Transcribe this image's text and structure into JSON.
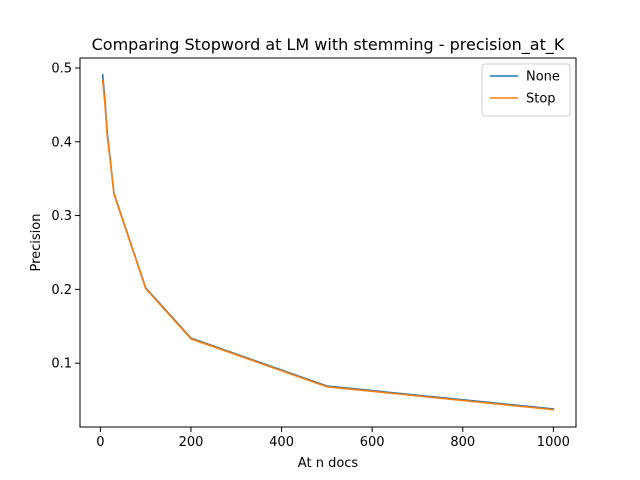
{
  "chart_data": {
    "type": "line",
    "title": "Comparing Stopword at LM with stemming - precision_at_K",
    "xlabel": "At n docs",
    "ylabel": "Precision",
    "xlim": [
      -45,
      1050
    ],
    "ylim": [
      0.0135,
      0.5135
    ],
    "xticks": [
      0,
      200,
      400,
      600,
      800,
      1000
    ],
    "yticks": [
      0.1,
      0.2,
      0.3,
      0.4,
      0.5
    ],
    "xtick_labels": [
      "0",
      "200",
      "400",
      "600",
      "800",
      "1000"
    ],
    "ytick_labels": [
      "0.1",
      "0.2",
      "0.3",
      "0.4",
      "0.5"
    ],
    "grid": false,
    "legend_position": "top-right",
    "x": [
      5,
      10,
      15,
      20,
      30,
      100,
      200,
      500,
      1000
    ],
    "series": [
      {
        "name": "None",
        "color": "#1f77b4",
        "values": [
          0.491,
          0.458,
          0.413,
          0.386,
          0.33,
          0.202,
          0.134,
          0.069,
          0.038
        ]
      },
      {
        "name": "Stop",
        "color": "#ff7f0e",
        "values": [
          0.483,
          0.452,
          0.409,
          0.383,
          0.329,
          0.201,
          0.133,
          0.068,
          0.037
        ]
      }
    ]
  }
}
